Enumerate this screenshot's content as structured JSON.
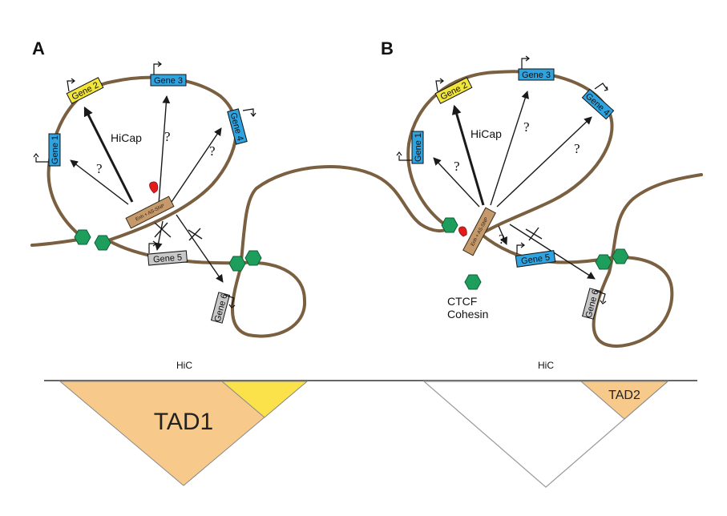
{
  "panels": {
    "a": {
      "letter": "A",
      "genes": [
        "Gene 1",
        "Gene 2",
        "Gene 3",
        "Gene 4",
        "Gene 5",
        "Gene 6"
      ],
      "hicap_label": "HiCap",
      "question_mark": "?",
      "enhancer_label": "Enh + AS-SNP"
    },
    "b": {
      "letter": "B",
      "genes": [
        "Gene 1",
        "Gene 2",
        "Gene 3",
        "Gene 4",
        "Gene 5",
        "Gene 6"
      ],
      "hicap_label": "HiCap",
      "question_mark": "?",
      "enhancer_label": "Enh + AS-SNP",
      "legend": {
        "line1": "CTCF",
        "line2": "Cohesin"
      }
    }
  },
  "hic": {
    "left_label": "HiC",
    "right_label": "HiC",
    "tad1_label": "TAD1",
    "tad2_label": "TAD2"
  },
  "colors": {
    "chromatin": "#7a6040",
    "gene_blue": "#2ea3e0",
    "gene_yellow": "#f2e53a",
    "gene_gray": "#c8c8c8",
    "enhancer": "#c49a6c",
    "snp": "#e41b1b",
    "ctcf_cohesin": "#1e9e5c",
    "tad_fill": "#f7c98b",
    "tad_highlight": "#fbe24a"
  }
}
